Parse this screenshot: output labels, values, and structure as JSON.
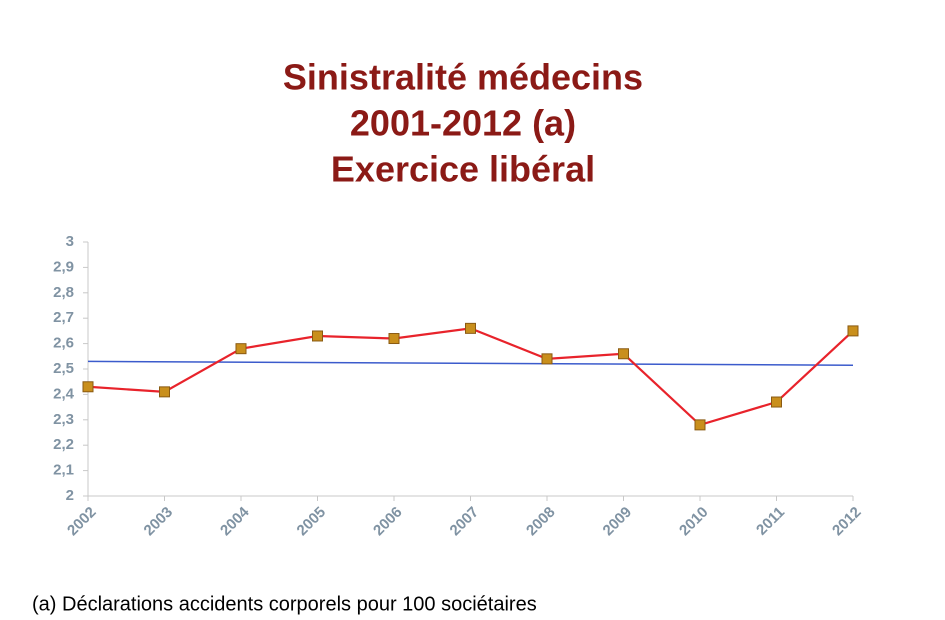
{
  "chart_data": {
    "type": "line",
    "title": [
      "Sinistralité médecins",
      "2001-2012 (a)",
      "Exercice libéral"
    ],
    "categories": [
      "2002",
      "2003",
      "2004",
      "2005",
      "2006",
      "2007",
      "2008",
      "2009",
      "2010",
      "2011",
      "2012"
    ],
    "series": [
      {
        "color": "#e8232b",
        "marker_color": "#c98f1c",
        "values": [
          2.43,
          2.41,
          2.58,
          2.63,
          2.62,
          2.66,
          2.54,
          2.56,
          2.28,
          2.37,
          2.65
        ]
      }
    ],
    "trend_line": {
      "color": "#3b5bcc",
      "values": [
        2.53,
        2.515
      ]
    },
    "ylim": [
      2,
      3
    ],
    "yticks": [
      2,
      {
        "value": 2.1,
        "label": "2,1"
      },
      {
        "value": 2.2,
        "label": "2,2"
      },
      {
        "value": 2.3,
        "label": "2,3"
      },
      {
        "value": 2.4,
        "label": "2,4"
      },
      {
        "value": 2.5,
        "label": "2,5"
      },
      {
        "value": 2.6,
        "label": "2,6"
      },
      {
        "value": 2.7,
        "label": "2,7"
      },
      {
        "value": 2.8,
        "label": "2,8"
      },
      {
        "value": 2.9,
        "label": "2,9"
      },
      3
    ],
    "grid": false,
    "footnote": "(a) Déclarations accidents corporels pour 100 sociétaires"
  }
}
